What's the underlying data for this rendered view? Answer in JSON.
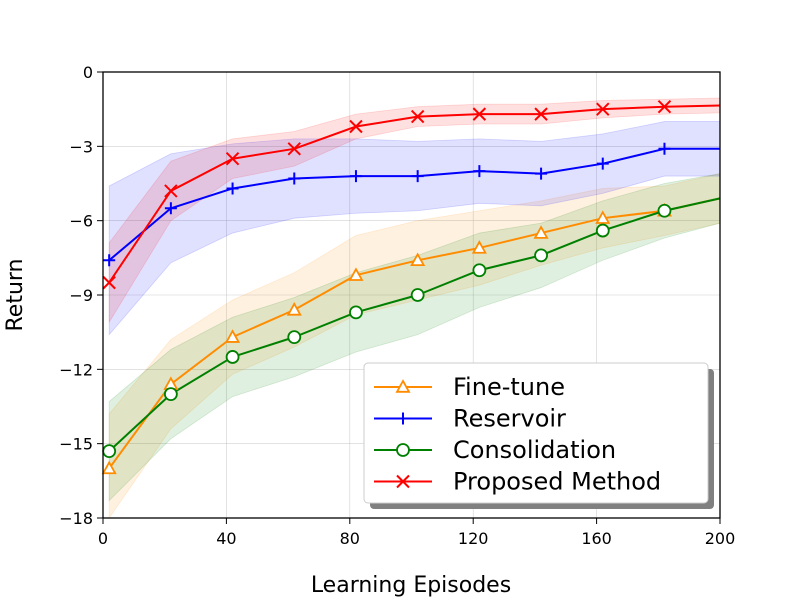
{
  "chart_data": {
    "type": "line",
    "xlabel": "Learning Episodes",
    "ylabel": "Return",
    "xlim": [
      0,
      200
    ],
    "ylim": [
      -18,
      0
    ],
    "xticks": [
      0,
      40,
      80,
      120,
      160,
      200
    ],
    "yticks": [
      0,
      -3,
      -6,
      -9,
      -12,
      -15,
      -18
    ],
    "grid": true,
    "legend_position": "lower-right",
    "x": [
      2,
      22,
      42,
      62,
      82,
      102,
      122,
      142,
      162,
      182,
      200
    ],
    "series": [
      {
        "name": "Fine-tune",
        "color": "#ff8c00",
        "marker": "triangle",
        "values": [
          -16.0,
          -12.6,
          -10.7,
          -9.6,
          -8.2,
          -7.6,
          -7.1,
          -6.5,
          -5.9,
          -5.6,
          -5.1
        ],
        "band": [
          2.2,
          1.8,
          1.5,
          1.5,
          1.6,
          1.6,
          1.5,
          1.3,
          1.2,
          1.0,
          1.0
        ]
      },
      {
        "name": "Reservoir",
        "color": "#0000ff",
        "marker": "plus",
        "values": [
          -7.6,
          -5.5,
          -4.7,
          -4.3,
          -4.2,
          -4.2,
          -4.0,
          -4.1,
          -3.7,
          -3.1,
          -3.1
        ],
        "band": [
          3.0,
          2.2,
          1.8,
          1.6,
          1.5,
          1.4,
          1.3,
          1.3,
          1.2,
          1.1,
          1.1
        ]
      },
      {
        "name": "Consolidation",
        "color": "#008000",
        "marker": "circle",
        "values": [
          -15.3,
          -13.0,
          -11.5,
          -10.7,
          -9.7,
          -9.0,
          -8.0,
          -7.4,
          -6.4,
          -5.6,
          -5.1
        ],
        "band": [
          2.0,
          1.8,
          1.6,
          1.6,
          1.6,
          1.6,
          1.5,
          1.3,
          1.2,
          1.1,
          1.0
        ]
      },
      {
        "name": "Proposed Method",
        "color": "#ff0000",
        "marker": "x",
        "values": [
          -8.5,
          -4.8,
          -3.5,
          -3.1,
          -2.2,
          -1.8,
          -1.7,
          -1.7,
          -1.5,
          -1.4,
          -1.35
        ],
        "band": [
          1.6,
          1.2,
          0.8,
          0.7,
          0.5,
          0.4,
          0.4,
          0.4,
          0.35,
          0.3,
          0.3
        ]
      }
    ]
  }
}
